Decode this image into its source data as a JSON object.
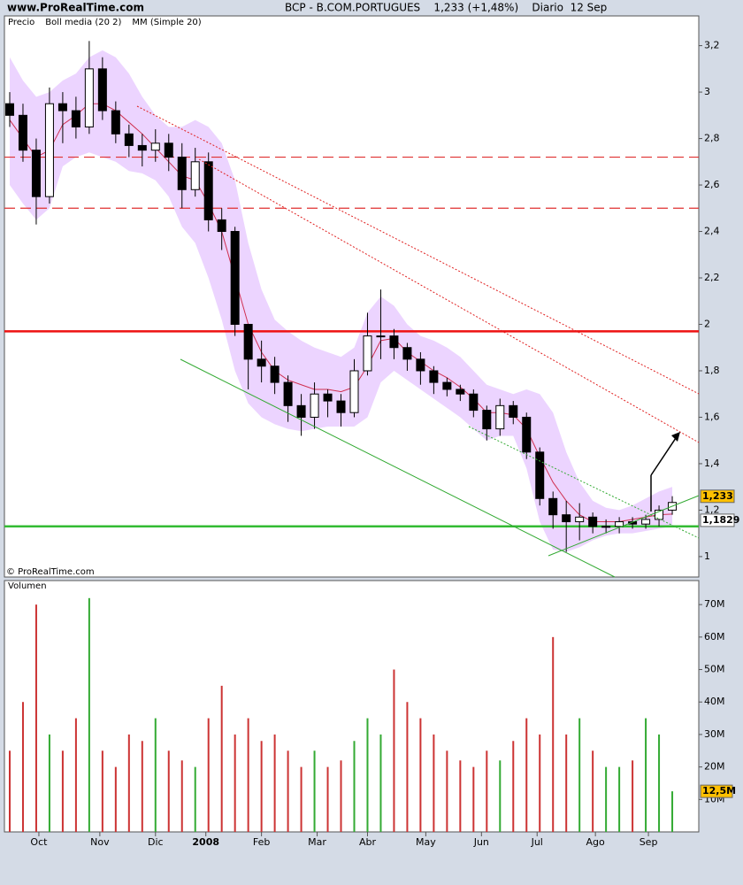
{
  "header": {
    "site": "www.ProRealTime.com",
    "title": "BCP - B.COM.PORTUGUES    1,233 (+1,48%)    Diario  12 Sep"
  },
  "copyright": "© ProRealTime.com",
  "chart_data": [
    {
      "type": "candlestick",
      "x": [
        2,
        7,
        12,
        17,
        22,
        27,
        32,
        37,
        42,
        47,
        52,
        57,
        62,
        67,
        72,
        77,
        82,
        87,
        92,
        97,
        102,
        107,
        112,
        117,
        122,
        127,
        132,
        137,
        142,
        147,
        152,
        157,
        162,
        167,
        172,
        177,
        182,
        187,
        192,
        197,
        202,
        207,
        212,
        217,
        222,
        227,
        232,
        237,
        242,
        247,
        252
      ],
      "xlim": [
        0,
        262
      ],
      "xticks": [
        {
          "value": 13,
          "label": "Oct"
        },
        {
          "value": 36,
          "label": "Nov"
        },
        {
          "value": 57,
          "label": "Dic"
        },
        {
          "value": 76,
          "label": "2008"
        },
        {
          "value": 97,
          "label": "Feb"
        },
        {
          "value": 118,
          "label": "Mar"
        },
        {
          "value": 137,
          "label": "Abr"
        },
        {
          "value": 159,
          "label": "May"
        },
        {
          "value": 180,
          "label": "Jun"
        },
        {
          "value": 201,
          "label": "Jul"
        },
        {
          "value": 223,
          "label": "Ago"
        },
        {
          "value": 243,
          "label": "Sep"
        }
      ],
      "ylim": [
        0.912,
        3.328
      ],
      "yticks": [
        1,
        {
          "value": 1.2,
          "label": "1,2"
        },
        {
          "value": 1.4,
          "label": "1,4"
        },
        {
          "value": 1.6,
          "label": "1,6"
        },
        {
          "value": 1.8,
          "label": "1,8"
        },
        2,
        {
          "value": 2.2,
          "label": "2,2"
        },
        {
          "value": 2.4,
          "label": "2,4"
        },
        {
          "value": 2.6,
          "label": "2,6"
        },
        {
          "value": 2.8,
          "label": "2,8"
        },
        3,
        {
          "value": 3.2,
          "label": "3,2"
        }
      ],
      "up_color": "#ffffff",
      "down_color": "#000000",
      "series": [
        {
          "name": "Precio",
          "open": [
            2.95,
            2.9,
            2.75,
            2.55,
            2.95,
            2.92,
            2.85,
            3.1,
            2.92,
            2.82,
            2.77,
            2.75,
            2.78,
            2.72,
            2.58,
            2.7,
            2.45,
            2.4,
            2.0,
            1.85,
            1.82,
            1.75,
            1.65,
            1.6,
            1.7,
            1.67,
            1.62,
            1.8,
            1.95,
            1.95,
            1.9,
            1.85,
            1.8,
            1.75,
            1.72,
            1.7,
            1.63,
            1.55,
            1.65,
            1.6,
            1.45,
            1.25,
            1.18,
            1.15,
            1.17,
            1.13,
            1.13,
            1.15,
            1.14,
            1.16,
            1.2
          ],
          "high": [
            3.0,
            2.95,
            2.8,
            3.02,
            3.0,
            2.98,
            3.22,
            3.15,
            2.96,
            2.86,
            2.82,
            2.84,
            2.82,
            2.78,
            2.76,
            2.74,
            2.5,
            2.42,
            2.0,
            1.93,
            1.86,
            1.78,
            1.7,
            1.75,
            1.72,
            1.7,
            1.85,
            2.05,
            2.15,
            1.98,
            1.92,
            1.88,
            1.82,
            1.77,
            1.74,
            1.72,
            1.65,
            1.68,
            1.67,
            1.62,
            1.47,
            1.28,
            1.24,
            1.23,
            1.19,
            1.16,
            1.17,
            1.17,
            1.18,
            1.22,
            1.26
          ],
          "low": [
            2.85,
            2.7,
            2.43,
            2.52,
            2.78,
            2.8,
            2.82,
            2.88,
            2.78,
            2.72,
            2.68,
            2.7,
            2.66,
            2.5,
            2.55,
            2.4,
            2.32,
            1.95,
            1.72,
            1.75,
            1.7,
            1.58,
            1.52,
            1.55,
            1.6,
            1.56,
            1.6,
            1.78,
            1.85,
            1.85,
            1.8,
            1.74,
            1.7,
            1.69,
            1.67,
            1.6,
            1.5,
            1.52,
            1.57,
            1.42,
            1.22,
            1.12,
            1.02,
            1.07,
            1.1,
            1.1,
            1.1,
            1.12,
            1.12,
            1.13,
            1.18
          ],
          "close": [
            2.9,
            2.75,
            2.55,
            2.95,
            2.92,
            2.85,
            3.1,
            2.92,
            2.82,
            2.77,
            2.75,
            2.78,
            2.72,
            2.58,
            2.7,
            2.45,
            2.4,
            2.0,
            1.85,
            1.82,
            1.75,
            1.65,
            1.6,
            1.7,
            1.67,
            1.62,
            1.8,
            1.95,
            1.95,
            1.9,
            1.85,
            1.8,
            1.75,
            1.72,
            1.7,
            1.63,
            1.55,
            1.65,
            1.6,
            1.45,
            1.25,
            1.18,
            1.15,
            1.17,
            1.13,
            1.13,
            1.15,
            1.14,
            1.16,
            1.2,
            1.233
          ],
          "last_label": "1,233",
          "label_color": "#ffc000"
        },
        {
          "name": "Boll media (20 2)",
          "color": "#8a2be2",
          "fill": "#ecd4ff",
          "upper": [
            3.15,
            3.05,
            2.98,
            3.0,
            3.05,
            3.08,
            3.15,
            3.18,
            3.15,
            3.08,
            2.98,
            2.9,
            2.85,
            2.85,
            2.88,
            2.85,
            2.78,
            2.62,
            2.35,
            2.15,
            2.02,
            1.97,
            1.93,
            1.9,
            1.88,
            1.86,
            1.9,
            2.05,
            2.12,
            2.08,
            2.0,
            1.95,
            1.93,
            1.9,
            1.86,
            1.8,
            1.74,
            1.72,
            1.7,
            1.72,
            1.7,
            1.62,
            1.45,
            1.32,
            1.24,
            1.21,
            1.2,
            1.22,
            1.25,
            1.28,
            1.3
          ],
          "lower": [
            2.6,
            2.52,
            2.45,
            2.5,
            2.68,
            2.72,
            2.74,
            2.72,
            2.7,
            2.66,
            2.65,
            2.62,
            2.55,
            2.42,
            2.35,
            2.2,
            2.02,
            1.8,
            1.66,
            1.6,
            1.57,
            1.55,
            1.54,
            1.55,
            1.56,
            1.56,
            1.56,
            1.6,
            1.75,
            1.8,
            1.76,
            1.72,
            1.68,
            1.64,
            1.6,
            1.55,
            1.5,
            1.52,
            1.52,
            1.38,
            1.15,
            1.03,
            1.02,
            1.04,
            1.07,
            1.09,
            1.1,
            1.1,
            1.11,
            1.12,
            1.13
          ]
        },
        {
          "name": "MM (Simple 20)",
          "color": "#d03050",
          "values": [
            2.88,
            2.8,
            2.72,
            2.75,
            2.86,
            2.9,
            2.95,
            2.95,
            2.92,
            2.87,
            2.82,
            2.76,
            2.7,
            2.64,
            2.62,
            2.52,
            2.4,
            2.2,
            2.0,
            1.88,
            1.8,
            1.76,
            1.74,
            1.72,
            1.72,
            1.71,
            1.73,
            1.82,
            1.93,
            1.94,
            1.88,
            1.84,
            1.8,
            1.77,
            1.73,
            1.68,
            1.62,
            1.62,
            1.61,
            1.55,
            1.43,
            1.32,
            1.24,
            1.18,
            1.15,
            1.15,
            1.15,
            1.16,
            1.17,
            1.18,
            1.1829
          ],
          "last_label": "1,1829",
          "label_color": "#ffffff"
        }
      ],
      "hlines": [
        {
          "value": 2.72,
          "color": "#e03030",
          "style": "dashed"
        },
        {
          "value": 2.5,
          "color": "#e03030",
          "style": "dashed"
        },
        {
          "value": 1.97,
          "color": "#ee1111",
          "style": "solid"
        },
        {
          "value": 1.13,
          "color": "#33bb33",
          "style": "solid"
        }
      ]
    },
    {
      "type": "bar",
      "ylim": [
        0,
        77.4
      ],
      "yticks": [
        {
          "value": 10,
          "label": "10M"
        },
        {
          "value": 20,
          "label": "20M"
        },
        {
          "value": 30,
          "label": "30M"
        },
        {
          "value": 40,
          "label": "40M"
        },
        {
          "value": 50,
          "label": "50M"
        },
        {
          "value": 60,
          "label": "60M"
        },
        {
          "value": 70,
          "label": "70M"
        }
      ],
      "up_color": "#33aa33",
      "down_color": "#cc3333",
      "series": [
        {
          "name": "Volumen",
          "values": [
            25,
            40,
            70,
            30,
            25,
            35,
            72,
            25,
            20,
            30,
            28,
            35,
            25,
            22,
            20,
            35,
            45,
            30,
            35,
            28,
            30,
            25,
            20,
            25,
            20,
            22,
            28,
            35,
            30,
            50,
            40,
            35,
            30,
            25,
            22,
            20,
            25,
            22,
            28,
            35,
            30,
            60,
            30,
            35,
            25,
            20,
            20,
            22,
            35,
            30,
            12.5
          ],
          "last_label": "12,5M",
          "label_color": "#ffc000"
        }
      ]
    }
  ]
}
